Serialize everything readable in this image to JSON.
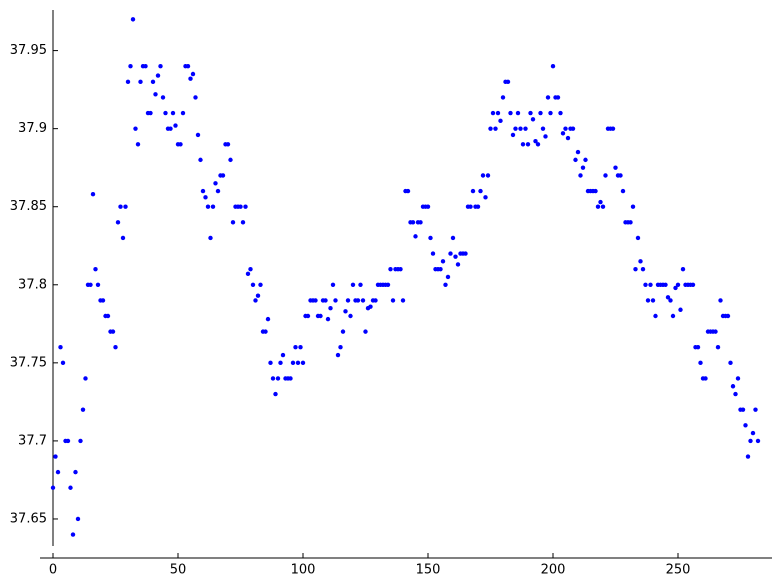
{
  "chart_data": {
    "type": "scatter",
    "color": "#0000ff",
    "xlim": [
      -5.2,
      287.6
    ],
    "ylim": [
      37.625,
      37.976
    ],
    "xticks": [
      0,
      50,
      100,
      150,
      200,
      250
    ],
    "yticks": [
      37.65,
      37.7,
      37.75,
      37.8,
      37.85,
      37.9,
      37.95
    ],
    "series": [
      {
        "color": "#0000ff",
        "x": [
          0,
          1,
          2,
          3,
          4,
          5,
          6,
          7,
          8,
          9,
          10,
          11,
          12,
          13,
          14,
          15,
          16,
          17,
          18,
          19,
          20,
          21,
          22,
          23,
          24,
          25,
          26,
          27,
          28,
          29,
          30,
          31,
          32,
          33,
          34,
          35,
          36,
          37,
          38,
          39,
          40,
          41,
          42,
          43,
          44,
          45,
          46,
          47,
          48,
          49,
          50,
          51,
          52,
          53,
          54,
          55,
          56,
          57,
          58,
          59,
          60,
          61,
          62,
          63,
          64,
          65,
          66,
          67,
          68,
          69,
          70,
          71,
          72,
          73,
          74,
          75,
          76,
          77,
          78,
          79,
          80,
          81,
          82,
          83,
          84,
          85,
          86,
          87,
          88,
          89,
          90,
          91,
          92,
          93,
          94,
          95,
          96,
          97,
          98,
          99,
          100,
          101,
          102,
          103,
          104,
          105,
          106,
          107,
          108,
          109,
          110,
          111,
          112,
          113,
          114,
          115,
          116,
          117,
          118,
          119,
          120,
          121,
          122,
          123,
          124,
          125,
          126,
          127,
          128,
          129,
          130,
          131,
          132,
          133,
          134,
          135,
          136,
          137,
          138,
          139,
          140,
          141,
          142,
          143,
          144,
          145,
          146,
          147,
          148,
          149,
          150,
          151,
          152,
          153,
          154,
          155,
          156,
          157,
          158,
          159,
          160,
          161,
          162,
          163,
          164,
          165,
          166,
          167,
          168,
          169,
          170,
          171,
          172,
          173,
          174,
          175,
          176,
          177,
          178,
          179,
          180,
          181,
          182,
          183,
          184,
          185,
          186,
          187,
          188,
          189,
          190,
          191,
          192,
          193,
          194,
          195,
          196,
          197,
          198,
          199,
          200,
          201,
          202,
          203,
          204,
          205,
          206,
          207,
          208,
          209,
          210,
          211,
          212,
          213,
          214,
          215,
          216,
          217,
          218,
          219,
          220,
          221,
          222,
          223,
          224,
          225,
          226,
          227,
          228,
          229,
          230,
          231,
          232,
          233,
          234,
          235,
          236,
          237,
          238,
          239,
          240,
          241,
          242,
          243,
          244,
          245,
          246,
          247,
          248,
          249,
          250,
          251,
          252,
          253,
          254,
          255,
          256,
          257,
          258,
          259,
          260,
          261,
          262,
          263,
          264,
          265,
          266,
          267,
          268,
          269,
          270,
          271,
          272,
          273,
          274,
          275,
          276,
          277,
          278,
          279,
          280,
          281,
          282
        ],
        "values": [
          37.67,
          37.69,
          37.68,
          37.76,
          37.75,
          37.7,
          37.7,
          37.67,
          37.64,
          37.68,
          37.65,
          37.7,
          37.72,
          37.74,
          37.8,
          37.8,
          37.858,
          37.81,
          37.8,
          37.79,
          37.79,
          37.78,
          37.78,
          37.77,
          37.77,
          37.76,
          37.84,
          37.85,
          37.83,
          37.85,
          37.93,
          37.94,
          37.97,
          37.9,
          37.89,
          37.93,
          37.94,
          37.94,
          37.91,
          37.91,
          37.93,
          37.922,
          37.934,
          37.94,
          37.92,
          37.91,
          37.9,
          37.9,
          37.91,
          37.902,
          37.89,
          37.89,
          37.91,
          37.94,
          37.94,
          37.932,
          37.935,
          37.92,
          37.896,
          37.88,
          37.86,
          37.856,
          37.85,
          37.83,
          37.85,
          37.865,
          37.86,
          37.87,
          37.87,
          37.89,
          37.89,
          37.88,
          37.84,
          37.85,
          37.85,
          37.85,
          37.84,
          37.85,
          37.807,
          37.81,
          37.8,
          37.79,
          37.793,
          37.8,
          37.77,
          37.77,
          37.778,
          37.75,
          37.74,
          37.73,
          37.74,
          37.75,
          37.755,
          37.74,
          37.74,
          37.74,
          37.75,
          37.76,
          37.75,
          37.76,
          37.75,
          37.78,
          37.78,
          37.79,
          37.79,
          37.79,
          37.78,
          37.78,
          37.79,
          37.79,
          37.778,
          37.785,
          37.8,
          37.79,
          37.755,
          37.76,
          37.77,
          37.783,
          37.79,
          37.78,
          37.8,
          37.79,
          37.79,
          37.8,
          37.79,
          37.77,
          37.785,
          37.786,
          37.79,
          37.79,
          37.8,
          37.8,
          37.8,
          37.8,
          37.8,
          37.81,
          37.79,
          37.81,
          37.81,
          37.81,
          37.79,
          37.86,
          37.86,
          37.84,
          37.84,
          37.831,
          37.84,
          37.84,
          37.85,
          37.85,
          37.85,
          37.83,
          37.82,
          37.81,
          37.81,
          37.81,
          37.815,
          37.8,
          37.805,
          37.82,
          37.83,
          37.818,
          37.813,
          37.82,
          37.82,
          37.82,
          37.85,
          37.85,
          37.86,
          37.85,
          37.85,
          37.86,
          37.87,
          37.856,
          37.87,
          37.9,
          37.91,
          37.9,
          37.91,
          37.905,
          37.92,
          37.93,
          37.93,
          37.91,
          37.896,
          37.9,
          37.91,
          37.9,
          37.89,
          37.9,
          37.89,
          37.91,
          37.906,
          37.892,
          37.89,
          37.91,
          37.9,
          37.895,
          37.92,
          37.91,
          37.94,
          37.92,
          37.92,
          37.91,
          37.897,
          37.9,
          37.894,
          37.9,
          37.9,
          37.88,
          37.885,
          37.87,
          37.875,
          37.88,
          37.86,
          37.86,
          37.86,
          37.86,
          37.85,
          37.853,
          37.85,
          37.87,
          37.9,
          37.9,
          37.9,
          37.875,
          37.87,
          37.87,
          37.86,
          37.84,
          37.84,
          37.84,
          37.85,
          37.81,
          37.83,
          37.815,
          37.81,
          37.8,
          37.79,
          37.8,
          37.79,
          37.78,
          37.8,
          37.8,
          37.8,
          37.8,
          37.792,
          37.79,
          37.78,
          37.798,
          37.8,
          37.784,
          37.81,
          37.8,
          37.8,
          37.8,
          37.8,
          37.76,
          37.76,
          37.75,
          37.74,
          37.74,
          37.77,
          37.77,
          37.77,
          37.77,
          37.76,
          37.79,
          37.78,
          37.78,
          37.78,
          37.75,
          37.735,
          37.73,
          37.74,
          37.72,
          37.72,
          37.71,
          37.69,
          37.7,
          37.705,
          37.72,
          37.7
        ]
      }
    ]
  }
}
